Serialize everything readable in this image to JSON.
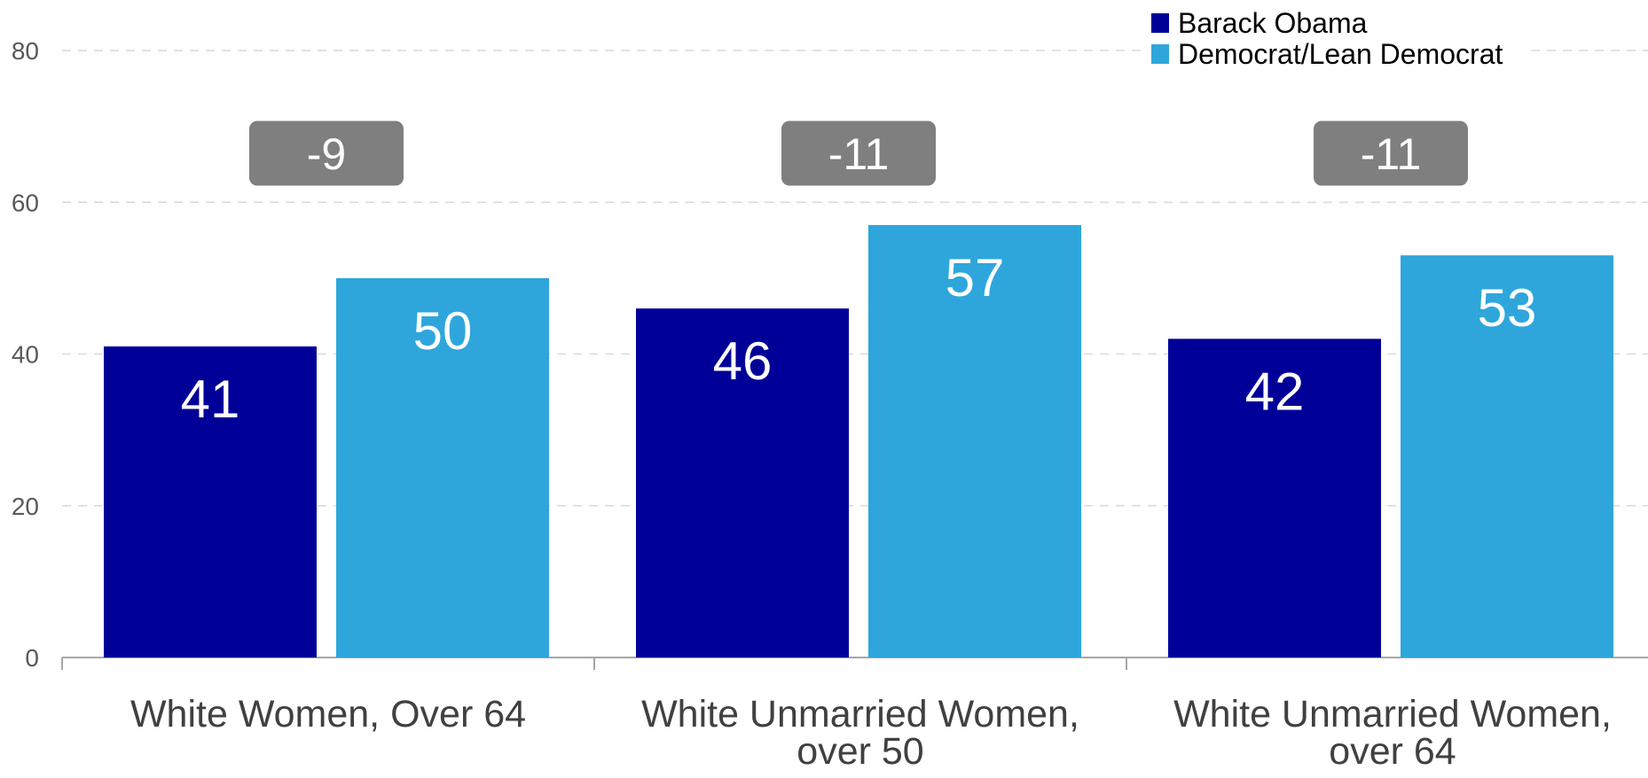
{
  "chart_data": {
    "type": "bar",
    "categories": [
      [
        "White Women, Over 64"
      ],
      [
        "White Unmarried Women,",
        "over 50"
      ],
      [
        "White Unmarried Women,",
        "over 64"
      ]
    ],
    "series": [
      {
        "name": "Barack Obama",
        "values": [
          41,
          46,
          42
        ],
        "color": "#000099"
      },
      {
        "name": "Democrat/Lean Democrat",
        "values": [
          50,
          57,
          53
        ],
        "color": "#2ea6dc"
      }
    ],
    "differences": [
      "-9",
      "-11",
      "-11"
    ],
    "difference_box_color": "#7f7f7f",
    "ylim": [
      0,
      80
    ],
    "yticks": [
      0,
      20,
      40,
      60,
      80
    ],
    "ytick_labels": [
      "0",
      "20",
      "40",
      "60",
      "80"
    ],
    "grid": true,
    "legend_position": "top-right",
    "title": "",
    "xlabel": "",
    "ylabel": ""
  }
}
